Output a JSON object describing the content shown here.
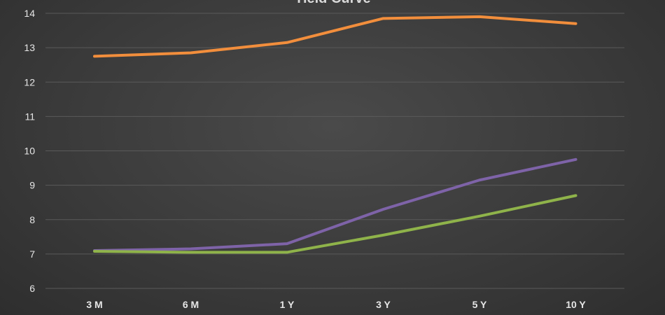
{
  "chart_data": {
    "type": "line",
    "title": "Yield Curve",
    "xlabel": "",
    "ylabel": "",
    "categories": [
      "3 M",
      "6 M",
      "1 Y",
      "3 Y",
      "5 Y",
      "10 Y"
    ],
    "ylim": [
      6,
      14
    ],
    "yticks": [
      6,
      7,
      8,
      9,
      10,
      11,
      12,
      13,
      14
    ],
    "grid": true,
    "series": [
      {
        "color": "#f28e3c",
        "values": [
          12.75,
          12.85,
          13.15,
          13.85,
          13.9,
          13.7
        ]
      },
      {
        "color": "#7e63a8",
        "values": [
          7.1,
          7.15,
          7.3,
          8.3,
          9.15,
          9.75
        ]
      },
      {
        "color": "#8fb34a",
        "values": [
          7.08,
          7.05,
          7.05,
          7.55,
          8.1,
          8.7
        ]
      }
    ]
  }
}
